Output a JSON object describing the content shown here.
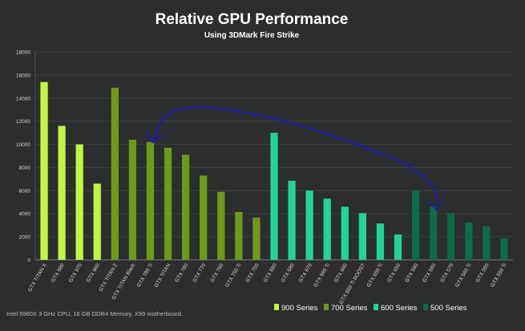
{
  "chart_data": {
    "type": "bar",
    "title": "Relative GPU Performance",
    "subtitle": "Using 3DMark Fire Strike",
    "footnote": "Intel 5960X  3 GHz CPU, 16 GB DDR4 Memory, X99 motherboard.",
    "ylim": [
      0,
      18000
    ],
    "yticks": [
      0,
      2000,
      4000,
      6000,
      8000,
      10000,
      12000,
      14000,
      16000,
      18000
    ],
    "grid": true,
    "legend_position": "bottom-right",
    "colors": {
      "900 Series": "#c2f542",
      "700 Series": "#6e9a1a",
      "600 Series": "#22d39a",
      "500 Series": "#0d6b47",
      "annotation_arrow": "#1c1ca8",
      "background": "#2b2d2e",
      "grid": "#4a4c4d"
    },
    "legend": [
      "900 Series",
      "700 Series",
      "600 Series",
      "500 Series"
    ],
    "categories": [
      "GTX TITAN X",
      "GTX 980",
      "GTX 970",
      "GTX 960",
      "GTX TITAN Z",
      "GTX TITAN Black",
      "GTX 780 Ti",
      "GTX TITAN",
      "GTX 780",
      "GTX 770",
      "GTX 760",
      "GTX 750 Ti",
      "GTX 750",
      "GTX 690",
      "GTX 680",
      "GTX 670",
      "GTX 660 Ti",
      "GTX 660",
      "GTX 650 Ti BOOST",
      "GTX 650 Ti",
      "GTX 650",
      "GTX 590",
      "GTX 580",
      "GTX 570",
      "GTX 560 Ti",
      "GTX 560",
      "GTX 550 Ti"
    ],
    "series_of": [
      "900 Series",
      "900 Series",
      "900 Series",
      "900 Series",
      "700 Series",
      "700 Series",
      "700 Series",
      "700 Series",
      "700 Series",
      "700 Series",
      "700 Series",
      "700 Series",
      "700 Series",
      "600 Series",
      "600 Series",
      "600 Series",
      "600 Series",
      "600 Series",
      "600 Series",
      "600 Series",
      "600 Series",
      "500 Series",
      "500 Series",
      "500 Series",
      "500 Series",
      "500 Series",
      "500 Series"
    ],
    "values": [
      15400,
      11600,
      10000,
      6600,
      14900,
      10400,
      10200,
      9700,
      9100,
      7300,
      5900,
      4150,
      3650,
      11000,
      6850,
      6000,
      5300,
      4600,
      4050,
      3150,
      2200,
      6000,
      4600,
      4050,
      3250,
      2900,
      1850
    ],
    "annotation": {
      "type": "hand-drawn arrow",
      "from": "GTX 580",
      "to": "GTX 780 Ti"
    }
  }
}
